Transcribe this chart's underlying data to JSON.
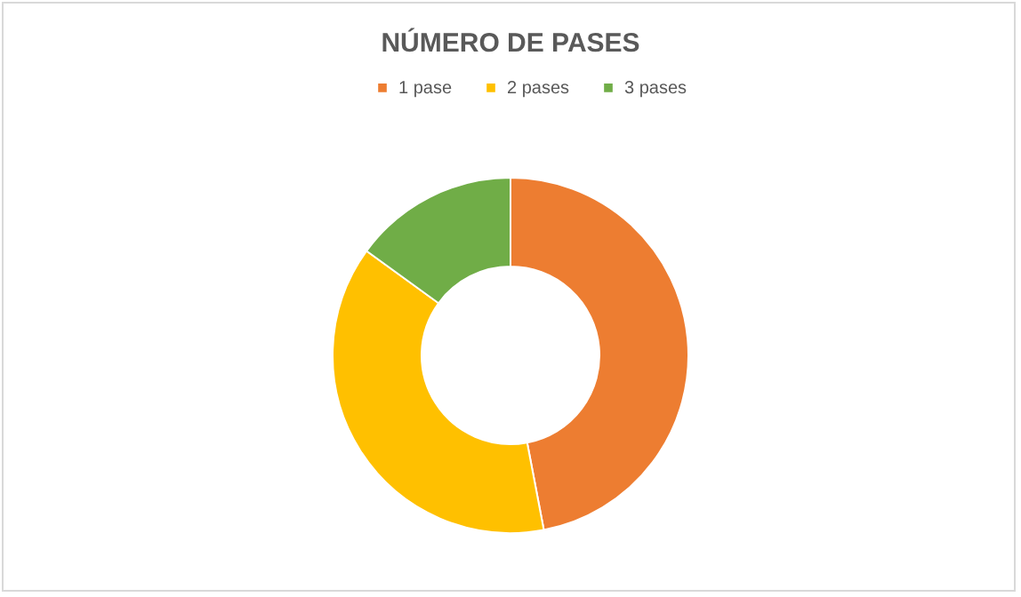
{
  "chart_data": {
    "type": "donut",
    "title": "NÚMERO  DE  PASES",
    "categories": [
      "1 pase",
      "2 pases",
      "3 pases"
    ],
    "values": [
      47,
      38,
      15
    ],
    "colors": [
      "#ed7d31",
      "#ffc000",
      "#70ad47"
    ],
    "legend": "top"
  }
}
